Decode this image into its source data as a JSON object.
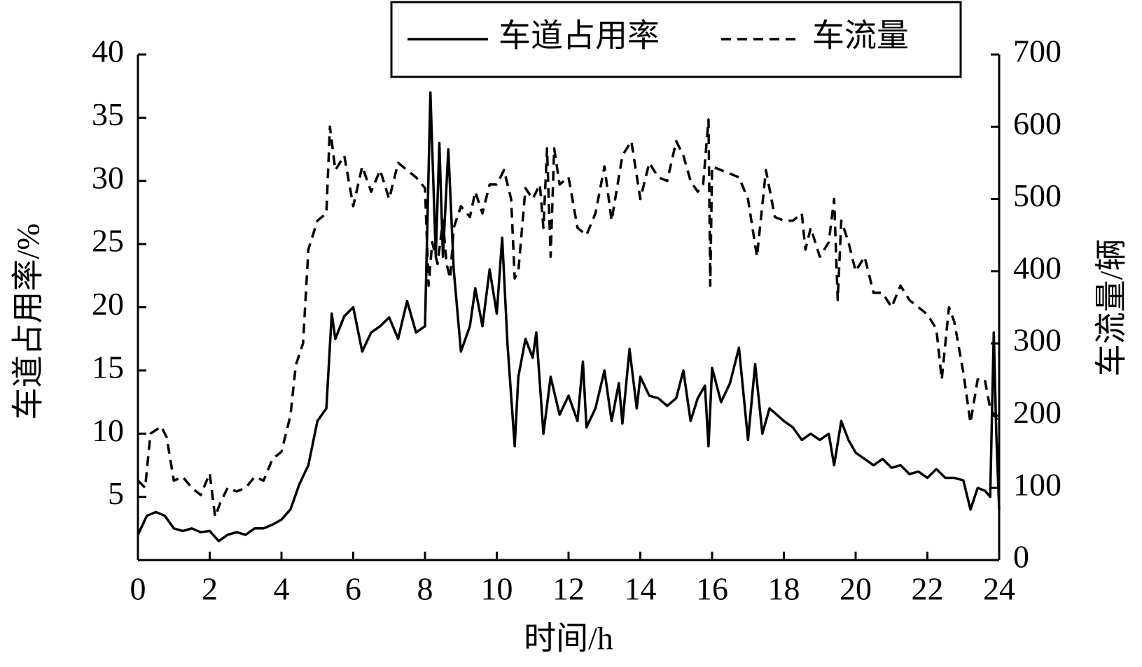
{
  "chart_data": {
    "type": "line",
    "x_label": "时间/h",
    "y_label": "车道占用率/%",
    "y2_label": "车流量/辆",
    "xlim": [
      0,
      24
    ],
    "xticks": [
      0,
      2,
      4,
      6,
      8,
      10,
      12,
      14,
      16,
      18,
      20,
      22,
      24
    ],
    "ylim": [
      0,
      40
    ],
    "yticks": [
      5,
      10,
      15,
      20,
      25,
      30,
      35,
      40
    ],
    "y2lim": [
      0,
      700
    ],
    "y2ticks": [
      0,
      100,
      200,
      300,
      400,
      500,
      600,
      700
    ],
    "legend": "top",
    "series": [
      {
        "name": "车道占用率",
        "color": "#000000",
        "dashed": false,
        "x": [
          0,
          0.25,
          0.5,
          0.75,
          1,
          1.25,
          1.5,
          1.75,
          2,
          2.25,
          2.5,
          2.75,
          3,
          3.25,
          3.5,
          3.75,
          4,
          4.25,
          4.5,
          4.75,
          5,
          5.25,
          5.4,
          5.5,
          5.75,
          6,
          6.25,
          6.5,
          6.75,
          7,
          7.25,
          7.5,
          7.75,
          8,
          8.15,
          8.3,
          8.4,
          8.5,
          8.65,
          8.8,
          9,
          9.25,
          9.4,
          9.6,
          9.8,
          10,
          10.15,
          10.3,
          10.5,
          10.6,
          10.8,
          11,
          11.1,
          11.3,
          11.5,
          11.75,
          12,
          12.25,
          12.4,
          12.5,
          12.75,
          13,
          13.2,
          13.4,
          13.5,
          13.7,
          13.9,
          14,
          14.25,
          14.5,
          14.75,
          15,
          15.2,
          15.4,
          15.6,
          15.8,
          15.9,
          16,
          16.25,
          16.5,
          16.75,
          17,
          17.2,
          17.4,
          17.6,
          17.8,
          18,
          18.25,
          18.5,
          18.75,
          19,
          19.25,
          19.4,
          19.6,
          19.8,
          20,
          20.25,
          20.5,
          20.75,
          21,
          21.25,
          21.5,
          21.75,
          22,
          22.25,
          22.5,
          22.75,
          23,
          23.2,
          23.4,
          23.6,
          23.75,
          23.85,
          23.92,
          24
        ],
        "values": [
          2,
          3.5,
          3.8,
          3.5,
          2.5,
          2.3,
          2.5,
          2.2,
          2.3,
          1.5,
          2,
          2.2,
          2,
          2.5,
          2.5,
          2.8,
          3.2,
          4,
          6,
          7.5,
          11,
          12,
          19.5,
          17.5,
          19.3,
          20,
          16.5,
          18,
          18.5,
          19.2,
          17.5,
          20.5,
          18,
          18.5,
          37,
          24,
          33,
          24,
          32.5,
          23,
          16.5,
          18.5,
          21.5,
          18.5,
          23,
          19.5,
          25.5,
          17,
          9,
          14.5,
          17.5,
          16,
          18,
          10,
          14.5,
          11.5,
          13,
          11,
          15.7,
          10.5,
          12,
          15,
          11,
          14,
          10.8,
          16.7,
          12,
          14.5,
          13,
          12.8,
          12.2,
          12.8,
          15,
          11,
          12.8,
          13.8,
          9,
          15.2,
          12.5,
          14,
          16.8,
          9.5,
          15.5,
          10,
          12,
          11.5,
          11,
          10.5,
          9.5,
          10,
          9.5,
          10,
          7.5,
          11,
          9.5,
          8.5,
          8,
          7.5,
          8,
          7.3,
          7.5,
          6.8,
          7,
          6.5,
          7.2,
          6.5,
          6.5,
          6.3,
          4,
          5.7,
          5.5,
          5,
          18,
          10,
          4
        ]
      },
      {
        "name": "车流量",
        "color": "#000000",
        "dashed": true,
        "axis": "y2",
        "x": [
          0,
          0.2,
          0.35,
          0.5,
          0.65,
          0.8,
          1,
          1.25,
          1.5,
          1.75,
          2,
          2.15,
          2.3,
          2.5,
          2.75,
          3,
          3.25,
          3.5,
          3.75,
          4,
          4.25,
          4.4,
          4.6,
          4.75,
          5,
          5.25,
          5.35,
          5.5,
          5.75,
          6,
          6.25,
          6.5,
          6.75,
          7,
          7.25,
          7.5,
          7.75,
          8,
          8.1,
          8.2,
          8.35,
          8.5,
          8.6,
          8.7,
          8.8,
          9,
          9.25,
          9.4,
          9.6,
          9.8,
          10,
          10.2,
          10.4,
          10.5,
          10.6,
          10.8,
          11,
          11.2,
          11.3,
          11.4,
          11.5,
          11.6,
          11.75,
          12,
          12.25,
          12.5,
          12.75,
          13,
          13.2,
          13.5,
          13.75,
          14,
          14.25,
          14.5,
          14.75,
          15,
          15.2,
          15.4,
          15.6,
          15.75,
          15.9,
          15.95,
          16,
          16.5,
          16.75,
          17,
          17.25,
          17.5,
          17.75,
          18,
          18.25,
          18.5,
          18.6,
          18.75,
          19,
          19.25,
          19.4,
          19.5,
          19.6,
          19.8,
          20,
          20.25,
          20.5,
          20.75,
          21,
          21.25,
          21.5,
          21.75,
          22,
          22.25,
          22.4,
          22.6,
          22.75,
          23,
          23.2,
          23.4,
          23.6,
          23.75,
          24
        ],
        "values": [
          110,
          100,
          175,
          180,
          185,
          170,
          110,
          115,
          100,
          90,
          120,
          60,
          80,
          100,
          95,
          100,
          115,
          110,
          140,
          150,
          200,
          270,
          300,
          430,
          470,
          480,
          600,
          540,
          560,
          490,
          545,
          510,
          540,
          500,
          550,
          540,
          530,
          515,
          380,
          440,
          410,
          470,
          410,
          390,
          460,
          490,
          475,
          510,
          480,
          520,
          520,
          540,
          500,
          390,
          400,
          515,
          500,
          520,
          460,
          570,
          420,
          570,
          520,
          530,
          460,
          450,
          480,
          545,
          470,
          560,
          580,
          500,
          550,
          530,
          525,
          580,
          560,
          525,
          510,
          520,
          610,
          380,
          545,
          535,
          530,
          500,
          420,
          540,
          475,
          470,
          470,
          480,
          430,
          460,
          420,
          440,
          500,
          360,
          470,
          440,
          400,
          420,
          370,
          370,
          350,
          380,
          360,
          350,
          340,
          320,
          250,
          350,
          330,
          260,
          190,
          250,
          250,
          210,
          190
        ]
      }
    ]
  }
}
